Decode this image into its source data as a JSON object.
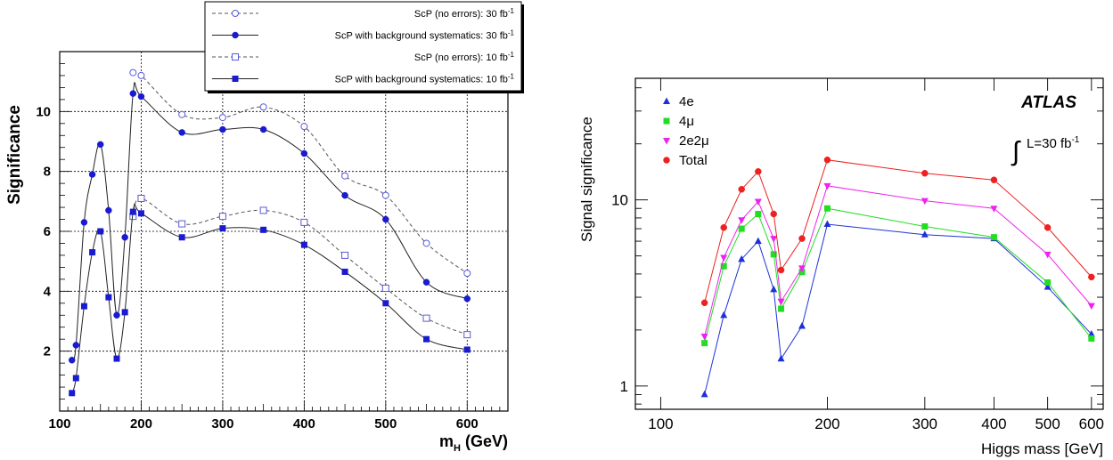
{
  "chart_data": [
    {
      "type": "line",
      "xlabel": "m",
      "xlabel_sub": "H",
      "xlabel_unit": " (GeV)",
      "ylabel": "Significance",
      "xlim": [
        100,
        650
      ],
      "ylim": [
        0,
        12
      ],
      "x_ticks": [
        100,
        200,
        300,
        400,
        500,
        600
      ],
      "y_ticks": [
        2,
        4,
        6,
        8,
        10
      ],
      "grid": true,
      "legend_position": "top-center",
      "series": [
        {
          "name": "ScP (no errors): 30 fb",
          "sup": "-1",
          "color": "#5a5adc",
          "line_style": "dashed",
          "marker": "open-circle",
          "x": [
            190,
            200,
            250,
            300,
            350,
            400,
            450,
            500,
            550,
            600
          ],
          "y": [
            11.3,
            11.2,
            9.9,
            9.8,
            10.15,
            9.5,
            7.85,
            7.2,
            5.6,
            4.6
          ]
        },
        {
          "name": "ScP with background systematics: 30 fb",
          "sup": "-1",
          "color": "#1a1ad0",
          "line_style": "solid",
          "marker": "filled-circle",
          "x": [
            115,
            120,
            130,
            140,
            150,
            160,
            170,
            180,
            190,
            200,
            250,
            300,
            350,
            400,
            450,
            500,
            550,
            600
          ],
          "y": [
            1.7,
            2.2,
            6.3,
            7.9,
            8.9,
            6.7,
            3.2,
            5.8,
            10.6,
            10.5,
            9.3,
            9.4,
            9.4,
            8.6,
            7.2,
            6.4,
            4.3,
            3.75
          ]
        },
        {
          "name": "ScP (no errors): 10 fb",
          "sup": "-1",
          "color": "#5a5adc",
          "line_style": "dashed",
          "marker": "open-square",
          "x": [
            190,
            200,
            250,
            300,
            350,
            400,
            450,
            500,
            550,
            600
          ],
          "y": [
            6.5,
            7.1,
            6.25,
            6.5,
            6.7,
            6.3,
            5.2,
            4.1,
            3.1,
            2.55
          ]
        },
        {
          "name": "ScP with background systematics: 10 fb",
          "sup": "-1",
          "color": "#1a1ad0",
          "line_style": "solid",
          "marker": "filled-square",
          "x": [
            115,
            120,
            130,
            140,
            150,
            160,
            170,
            180,
            190,
            200,
            250,
            300,
            350,
            400,
            450,
            500,
            550,
            600
          ],
          "y": [
            0.6,
            1.1,
            3.5,
            5.3,
            6.0,
            3.8,
            1.75,
            3.3,
            6.65,
            6.6,
            5.8,
            6.1,
            6.05,
            5.55,
            4.65,
            3.6,
            2.4,
            2.05
          ]
        }
      ]
    },
    {
      "type": "line",
      "xlabel": "Higgs mass [GeV]",
      "ylabel": "Signal significance",
      "xscale": "log",
      "yscale": "log",
      "xlim": [
        90,
        630
      ],
      "ylim": [
        0.75,
        45
      ],
      "x_ticks": [
        100,
        200,
        300,
        400,
        500,
        600
      ],
      "y_ticks": [
        1,
        10
      ],
      "grid": false,
      "legend_position": "top-left",
      "annotation": {
        "title": "ATLAS",
        "integral": "∫",
        "lumi": "L=30 fb",
        "lumi_sup": "-1"
      },
      "series": [
        {
          "name": "4e",
          "color": "#1f30d8",
          "marker": "triangle-up",
          "x": [
            120,
            130,
            140,
            150,
            160,
            165,
            180,
            200,
            300,
            400,
            500,
            600
          ],
          "y": [
            0.9,
            2.4,
            4.8,
            6.0,
            3.3,
            1.4,
            2.1,
            7.4,
            6.5,
            6.2,
            3.4,
            1.9
          ]
        },
        {
          "name": "4μ",
          "color": "#22dd22",
          "marker": "square",
          "x": [
            120,
            130,
            140,
            150,
            160,
            165,
            180,
            200,
            300,
            400,
            500,
            600
          ],
          "y": [
            1.7,
            4.4,
            7.0,
            8.4,
            5.1,
            2.6,
            4.1,
            9.0,
            7.2,
            6.3,
            3.6,
            1.8
          ]
        },
        {
          "name": "2e2μ",
          "color": "#ee22ee",
          "marker": "triangle-down",
          "x": [
            120,
            130,
            140,
            150,
            160,
            165,
            180,
            200,
            300,
            400,
            500,
            600
          ],
          "y": [
            1.85,
            4.9,
            7.8,
            9.8,
            6.2,
            2.85,
            4.3,
            11.9,
            9.9,
            9.0,
            5.1,
            2.7
          ]
        },
        {
          "name": "Total",
          "color": "#ee2020",
          "marker": "circle",
          "x": [
            120,
            130,
            140,
            150,
            160,
            165,
            180,
            200,
            300,
            400,
            500,
            600
          ],
          "y": [
            2.8,
            7.1,
            11.4,
            14.2,
            8.4,
            4.2,
            6.2,
            16.4,
            13.9,
            12.8,
            7.1,
            3.85
          ]
        }
      ]
    }
  ]
}
